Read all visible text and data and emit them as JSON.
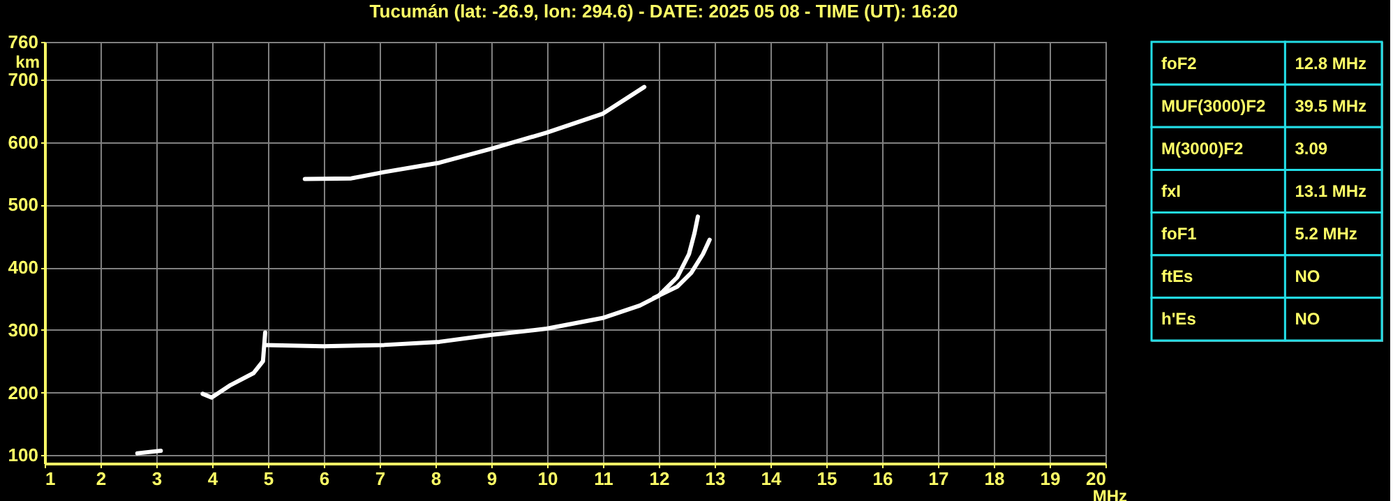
{
  "chart_data": [
    {
      "type": "line",
      "title": "Tucumán (lat: -26.9, lon: 294.6) - DATE: 2025 05 08 - TIME (UT): 16:20",
      "xlabel": "MHz",
      "ylabel": "km",
      "xlim": [
        1,
        20
      ],
      "xticks": [
        1,
        2,
        3,
        4,
        5,
        6,
        7,
        8,
        9,
        10,
        11,
        12,
        13,
        14,
        15,
        16,
        17,
        18,
        19,
        20
      ],
      "ylim": [
        87,
        760
      ],
      "yticks": [
        100,
        200,
        300,
        400,
        500,
        600,
        700,
        760
      ],
      "grid": true,
      "marker": "none",
      "line_style": "solid",
      "series": [
        {
          "color": "#ffffff",
          "x": [
            2.66,
            3.08
          ],
          "values": [
            103,
            107
          ]
        },
        {
          "color": "#ffffff",
          "x": [
            3.83,
            3.99,
            4.33,
            4.74,
            4.91,
            4.95
          ],
          "values": [
            198,
            192,
            212,
            231,
            250,
            296
          ]
        },
        {
          "color": "#ffffff",
          "x": [
            4.95,
            5.99,
            7.08,
            8.07,
            8.99,
            9.99,
            10.99,
            11.66,
            11.99,
            12.33,
            12.54,
            12.64,
            12.7
          ],
          "values": [
            276,
            274,
            276,
            281,
            292,
            302,
            319,
            339,
            354,
            384,
            421,
            455,
            481
          ]
        },
        {
          "color": "#ffffff",
          "x": [
            11.91,
            12.33,
            12.58,
            12.79,
            12.91
          ],
          "values": [
            351,
            369,
            391,
            421,
            444
          ]
        },
        {
          "color": "#ffffff",
          "x": [
            5.66,
            6.49,
            7.08,
            8.07,
            8.99,
            9.99,
            10.99,
            11.74
          ],
          "values": [
            541,
            542,
            552,
            567,
            589,
            615,
            645,
            688
          ]
        }
      ]
    },
    {
      "type": "other",
      "annotations": [
        "foF2",
        "12.8 MHz",
        "MUF(3000)F2",
        "39.5 MHz",
        "M(3000)F2",
        "3.09",
        "fxI",
        "13.1 MHz",
        "foF1",
        "5.2 MHz",
        "ftEs",
        "NO",
        "h'Es",
        "NO"
      ]
    }
  ]
}
